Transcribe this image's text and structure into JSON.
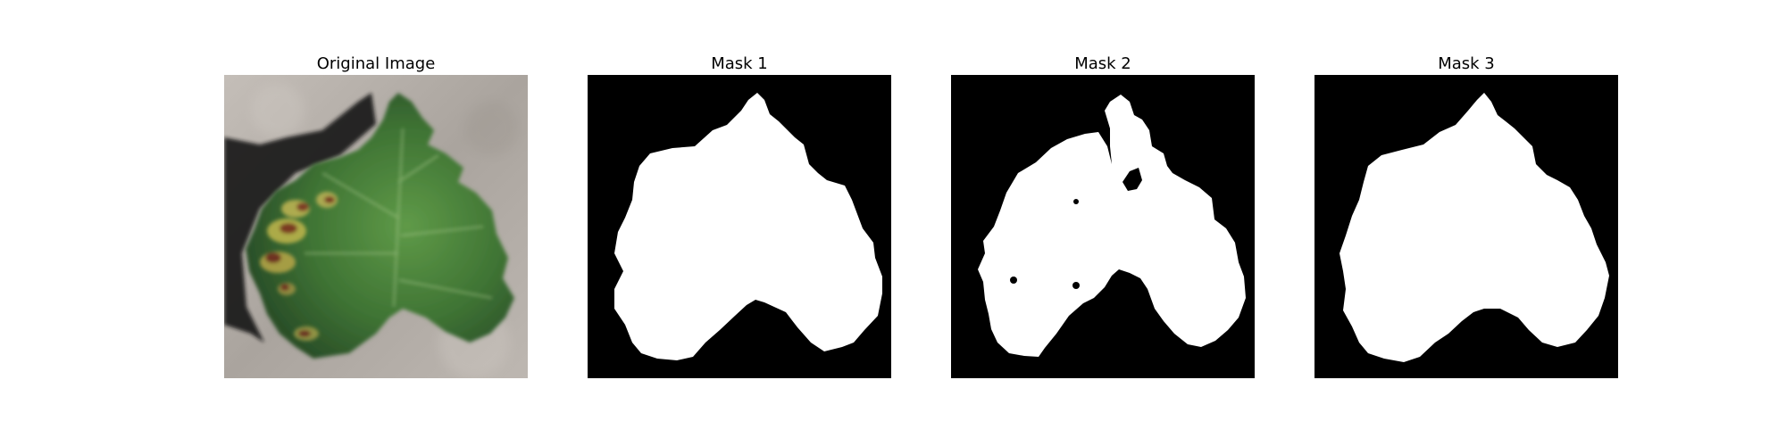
{
  "figure": {
    "panels": [
      {
        "title": "Original Image",
        "kind": "photo"
      },
      {
        "title": "Mask 1",
        "kind": "mask"
      },
      {
        "title": "Mask 2",
        "kind": "mask"
      },
      {
        "title": "Mask 3",
        "kind": "mask"
      }
    ]
  },
  "colors": {
    "mask_background": "#000000",
    "mask_foreground": "#ffffff",
    "photo_background": "#b9b3ae",
    "leaf_dark_green": "#2f5a2c",
    "leaf_mid_green": "#4f8a3c",
    "leaf_yellow": "#b9b24a",
    "leaf_rust": "#7a3a24",
    "shadow": "#1a1a1a"
  }
}
